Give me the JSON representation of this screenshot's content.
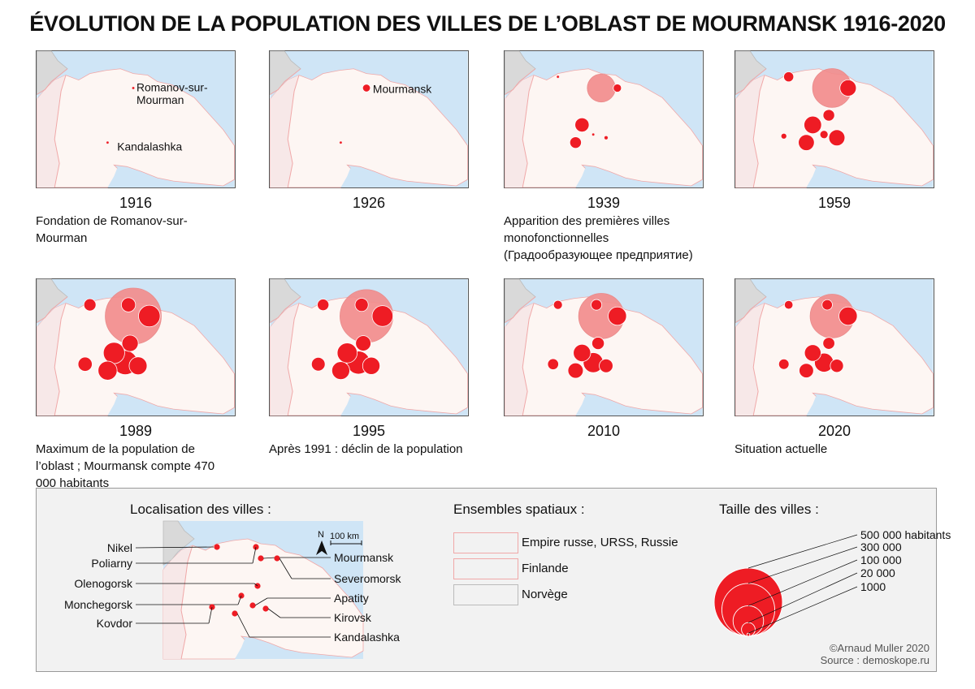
{
  "title": "ÉVOLUTION DE LA POPULATION DES VILLES DE L’OBLAST DE MOURMANSK 1916-2020",
  "colors": {
    "sea": "#cfe5f6",
    "russia": "#fdf6f3",
    "finland": "#f7e8e8",
    "norway": "#d9d9d9",
    "border": "#f0a8a8",
    "city": "#ee1c24",
    "city_big": "#f28b8b"
  },
  "panels": [
    {
      "year": "1916",
      "caption": "Fondation de Romanov-sur-Mourman",
      "map_labels": [
        "Romanov-sur-",
        "Mourman",
        "Kandalashka"
      ],
      "cities": [
        {
          "name": "Romanov-sur-Mourman",
          "population": 1000
        },
        {
          "name": "Kandalashka",
          "population": 1000
        }
      ]
    },
    {
      "year": "1926",
      "caption": "",
      "map_labels": [
        "Mourmansk"
      ],
      "cities": [
        {
          "name": "Mourmansk",
          "population": 9000
        },
        {
          "name": "Kandalashka",
          "population": 1000
        }
      ]
    },
    {
      "year": "1939",
      "caption": "Apparition des premières villes monofonctionnelles (Градообразующее предприятие)",
      "map_labels": [],
      "cities": [
        {
          "name": "Nikel",
          "population": 1000
        },
        {
          "name": "Mourmansk",
          "population": 117000
        },
        {
          "name": "Severomorsk",
          "population": 10000
        },
        {
          "name": "Monchegorsk",
          "population": 30000
        },
        {
          "name": "Kirovsk",
          "population": 2000
        },
        {
          "name": "Apatity",
          "population": 1000
        },
        {
          "name": "Kandalashka",
          "population": 20000
        }
      ]
    },
    {
      "year": "1959",
      "caption": "",
      "map_labels": [],
      "cities": [
        {
          "name": "Nikel",
          "population": 15000
        },
        {
          "name": "Mourmansk",
          "population": 226000
        },
        {
          "name": "Severomorsk",
          "population": 40000
        },
        {
          "name": "Olenogorsk",
          "population": 20000
        },
        {
          "name": "Monchegorsk",
          "population": 46000
        },
        {
          "name": "Kirovsk",
          "population": 39000
        },
        {
          "name": "Apatity",
          "population": 10000
        },
        {
          "name": "Kovdor",
          "population": 5000
        },
        {
          "name": "Kandalashka",
          "population": 38000
        }
      ]
    },
    {
      "year": "1989",
      "caption": "Maximum de la population de l’oblast ; Mourmansk compte 470 000 habitants",
      "map_labels": [],
      "cities": [
        {
          "name": "Nikel",
          "population": 22000
        },
        {
          "name": "Poliarny",
          "population": 30000
        },
        {
          "name": "Mourmansk",
          "population": 470000
        },
        {
          "name": "Severomorsk",
          "population": 70000
        },
        {
          "name": "Olenogorsk",
          "population": 40000
        },
        {
          "name": "Monchegorsk",
          "population": 68000
        },
        {
          "name": "Apatity",
          "population": 88000
        },
        {
          "name": "Kirovsk",
          "population": 48000
        },
        {
          "name": "Kovdor",
          "population": 30000
        },
        {
          "name": "Kandalashka",
          "population": 54000
        }
      ]
    },
    {
      "year": "1995",
      "caption": "Après 1991 : déclin de la population",
      "map_labels": [],
      "cities": [
        {
          "name": "Nikel",
          "population": 20000
        },
        {
          "name": "Poliarny",
          "population": 26000
        },
        {
          "name": "Mourmansk",
          "population": 420000
        },
        {
          "name": "Severomorsk",
          "population": 65000
        },
        {
          "name": "Olenogorsk",
          "population": 35000
        },
        {
          "name": "Monchegorsk",
          "population": 60000
        },
        {
          "name": "Apatity",
          "population": 80000
        },
        {
          "name": "Kirovsk",
          "population": 45000
        },
        {
          "name": "Kovdor",
          "population": 28000
        },
        {
          "name": "Kandalashka",
          "population": 48000
        }
      ]
    },
    {
      "year": "2010",
      "caption": "",
      "map_labels": [],
      "cities": [
        {
          "name": "Nikel",
          "population": 12000
        },
        {
          "name": "Poliarny",
          "population": 17000
        },
        {
          "name": "Mourmansk",
          "population": 307000
        },
        {
          "name": "Severomorsk",
          "population": 50000
        },
        {
          "name": "Olenogorsk",
          "population": 23000
        },
        {
          "name": "Monchegorsk",
          "population": 45000
        },
        {
          "name": "Apatity",
          "population": 60000
        },
        {
          "name": "Kirovsk",
          "population": 28000
        },
        {
          "name": "Kovdor",
          "population": 18000
        },
        {
          "name": "Kandalashka",
          "population": 35000
        }
      ]
    },
    {
      "year": "2020",
      "caption": "Situation actuelle",
      "map_labels": [],
      "cities": [
        {
          "name": "Nikel",
          "population": 11000
        },
        {
          "name": "Poliarny",
          "population": 16000
        },
        {
          "name": "Mourmansk",
          "population": 287000
        },
        {
          "name": "Severomorsk",
          "population": 50000
        },
        {
          "name": "Olenogorsk",
          "population": 21000
        },
        {
          "name": "Monchegorsk",
          "population": 41000
        },
        {
          "name": "Apatity",
          "population": 54000
        },
        {
          "name": "Kirovsk",
          "population": 26000
        },
        {
          "name": "Kovdor",
          "population": 16000
        },
        {
          "name": "Kandalashka",
          "population": 31000
        }
      ]
    }
  ],
  "legend": {
    "localisation": {
      "heading": "Localisation des villes :",
      "north": "N",
      "scale": "100 km",
      "left_labels": [
        "Nikel",
        "Poliarny",
        "Olenogorsk",
        "Monchegorsk",
        "Kovdor"
      ],
      "right_labels": [
        "Mourmansk",
        "Severomorsk",
        "Apatity",
        "Kirovsk",
        "Kandalashka"
      ]
    },
    "ensembles": {
      "heading": "Ensembles spatiaux :",
      "items": [
        {
          "label": "Empire russe, URSS, Russie",
          "color": "#fdf6f3"
        },
        {
          "label": "Finlande",
          "color": "#f7e8e8"
        },
        {
          "label": "Norvège",
          "color": "#d9d9d9"
        }
      ]
    },
    "taille": {
      "heading": "Taille des villes :",
      "items": [
        {
          "label": "500 000 habitants",
          "value": 500000
        },
        {
          "label": "300 000",
          "value": 300000
        },
        {
          "label": "100 000",
          "value": 100000
        },
        {
          "label": "20 000",
          "value": 20000
        },
        {
          "label": "1000",
          "value": 1000
        }
      ]
    }
  },
  "credit": {
    "author": "©Arnaud Muller 2020",
    "source": "Source : demoskope.ru"
  }
}
